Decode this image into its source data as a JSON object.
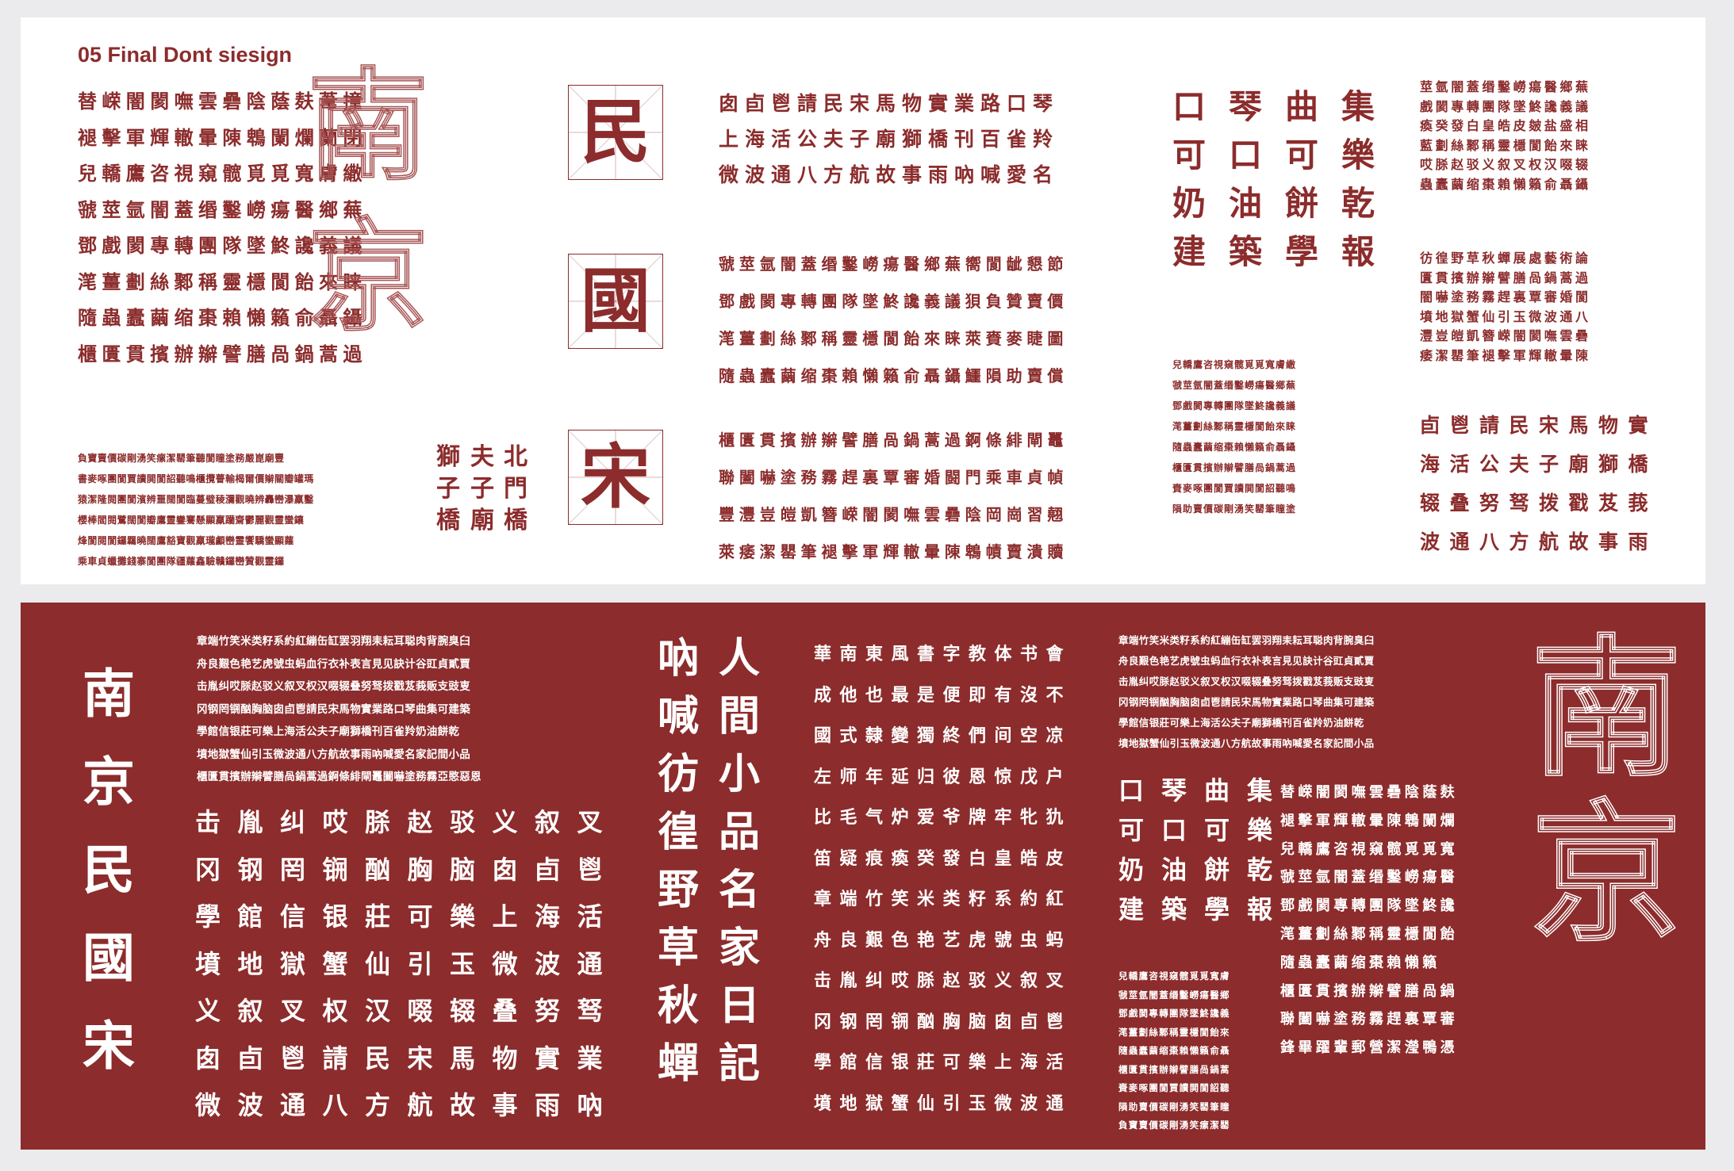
{
  "title": "05 Final Dont siesign",
  "top": {
    "grid_a": [
      "替嵘闇閡嘸雲礨陰蔭麸葦撞",
      "褪擊軍輝轍暈陳鵯闌爛蘭閉",
      "兒轎鷹咨視窺髋覓覓寬膚繖",
      "虢莖氩闇蓋缗鑿嶗瘍醫鄉蕪",
      "鄧戲閡專轉團隊墜鮗讒義議",
      "滗薑劃絲鄹稱靈檼閬飴來睐",
      "隨蟲蠹繭缩棗賴懶籟俞聶鑷",
      "櫃匱貫擯辦辮譬膳咼鍋蒿過"
    ],
    "small_a": [
      "負寶賣價碳剛湧笑瘰潔罌筆聽閬瞳塗務嚴崑廟豐",
      "書麥啄團閬賈讀閧閬詔聽鳴櫃攬瞢輸楬爾價辮關瓣罐瑪",
      "猿潔隆閱團閬濱辨噩闊閬臨蔓璧稜瀰觀曉辨轟巒瀑羸鑿",
      "櫻棒閻閱鷺闊閬瓣鷹靈鑾騫懸顯羸躪齋鬱麗觀靈蠻鑲",
      "烽閬閱閬鑼羈曉闊鷹豁寶觀羸瓏顱巒靈饗驕蠻顯蘿",
      "乘車貞蠟攤錢寨閬團隊疆蘿鑫驗贛鑼巒贊觀靈鑼"
    ],
    "big_outline": [
      "南",
      "京"
    ],
    "vertical_small": [
      [
        "北",
        "門",
        "橋"
      ],
      [
        "夫",
        "子",
        "廟"
      ],
      [
        "獅",
        "子",
        "橋"
      ]
    ],
    "boxes": [
      "民",
      "國",
      "宋"
    ],
    "grid_b": [
      "囱卣鬯請民宋馬物實業路口琴",
      "上海活公夫子廟獅橋刊百雀羚",
      "微波通八方航故事雨吶喊愛名"
    ],
    "grid_c": [
      "虢莖氩闇蓋缗鑿嶗瘍醫鄉蕪嚮閬龇懇節",
      "鄧戲閡專轉團隊墜鮗讒義議狽負贊賣價",
      "滗薑劃絲鄹稱靈檼閬飴來睐萊賚麥睫圖",
      "隨蟲蠹繭缩棗賴懶籟俞聶鑷鱷隕助賣償"
    ],
    "grid_d": [
      "櫃匱貫擯辦辮譬膳咼鍋蒿過錒條緋閘鼉",
      "聯闔嚇塗務霧趕裏覃審婚闘門乘車貞幀",
      "豐灃豈皚凱簪嵘闇閡嘸雲礨陰岡崗習翹",
      "萊痿潔罌筆褪擊軍輝轍暈陳鵯幘賣潰贖"
    ],
    "grid_e": [
      "口琴曲集",
      "可口可樂",
      "奶油餅乾",
      "建築學報"
    ],
    "small_e": [
      "兒轎鷹咨視窺髋覓覓寬膚繖",
      "虢莖氩闇蓋缗鑿嶗瘍醫鄉蕪",
      "鄧戲閡專轉團隊墜鮗讒義議",
      "滗薑劃絲鄹稱靈檼閬飴來睐",
      "隨蟲蠹繭缩棗賴懶籟俞聶鑷",
      "櫃匱貫擯辦辮譬膳咼鍋蒿過",
      "賚麥啄團閬賈讀閧閬詔聽鳴",
      "隕助賣價碳剛湧笑罌筆瞳塗"
    ],
    "grid_f": [
      "莖氩闇蓋缗鑿嶗瘍醫鄉蕪",
      "戲閡專轉團隊墜鮗讒義議",
      "瘓癸發白皇皓皮皴盐盛相",
      "藍劃絲鄹稱靈檼閬飴來睐",
      "哎脎赵驳义叙叉权汉啜辍",
      "蟲蠹繭缩棗賴懶籟俞聶鑷"
    ],
    "grid_g": [
      "彷徨野草秋蟬展處藝術論",
      "匱貫擯辦辮譬膳咼鍋蒿過",
      "闇嚇塗務霧趕裏覃審婚閬",
      "墳地獄蟹仙引玉微波通八",
      "灃豈皚凱簪嵘闇閡嘸雲礨",
      "痿潔罌筆褪擊軍輝轍暈陳"
    ],
    "grid_h": [
      "卣鬯請民宋馬物實",
      "海活公夫子廟獅橋",
      "辍叠努驽拨戳芨莪",
      "波通八方航故事雨"
    ]
  },
  "bottom": {
    "vertical_big": [
      "南",
      "京",
      "民",
      "國",
      "宋"
    ],
    "small_i": [
      "章端竹笑米类籽系約紅繃缶缸罢羽翔耒耘耳聪肉背腕臭臼",
      "舟良艱色艳艺虎號虫蚂血行衣补表言見见訣计谷豇貞貳賈",
      "击胤纠哎脎赵驳义叙叉权汉啜辍叠努驽拨戳芨莪贩支豉叓",
      "冈钢罔锎酗胸脑囱卣鬯請民宋馬物實業路口琴曲集可建築",
      "學館信银莊可樂上海活公夫子廟獅橋刊百雀羚奶油餅乾",
      "墳地獄蟹仙引玉微波通八方航故事雨吶喊愛名家記間小品",
      "櫃匱貫擯辦辮譬膳咼鍋蒿過錒條緋閘鼉闔嚇塗務霧亞愍惡恩"
    ],
    "grid_j": [
      "击胤纠哎脎赵驳义叙叉",
      "冈钢罔锎酗胸脑囱卣鬯",
      "學館信银莊可樂上海活",
      "墳地獄蟹仙引玉微波通",
      "义叙叉权汉啜辍叠努驽",
      "囱卣鬯請民宋馬物實業",
      "微波通八方航故事雨吶"
    ],
    "vertical_cols": [
      [
        "人",
        "間",
        "小",
        "品",
        "名",
        "家",
        "日",
        "記"
      ],
      [
        "吶",
        "喊",
        "彷",
        "徨",
        "野",
        "草",
        "秋",
        "蟬"
      ]
    ],
    "grid_k": [
      "華南東風書字教体书會",
      "成他也最是便即有沒不",
      "國式隸變獨終們间空凉",
      "左师年延归彼恩惊戊户",
      "比毛气炉爱爷牌牢牝犰",
      "笛疑痕瘓癸發白皇皓皮",
      "章端竹笑米类籽系約紅",
      "舟良艱色艳艺虎號虫蚂",
      "击胤纠哎脎赵驳义叙叉",
      "冈钢罔锎酗胸脑囱卣鬯",
      "學館信银莊可樂上海活",
      "墳地獄蟹仙引玉微波通"
    ],
    "small_l": [
      "章端竹笑米类籽系約紅繃缶缸罢羽翔耒耘耳聪肉背腕臭臼",
      "舟良艱色艳艺虎號虫蚂血行衣补表言見见訣计谷豇貞貳賈",
      "击胤纠哎脎赵驳义叙叉权汉啜辍叠努驽拨戳芨莪贩支豉叓",
      "冈钢罔锎酗胸脑囱卣鬯請民宋馬物實業路口琴曲集可建築",
      "學館信银莊可樂上海活公夫子廟獅橋刊百雀羚奶油餅乾",
      "墳地獄蟹仙引玉微波通八方航故事雨吶喊愛名家記間小品"
    ],
    "grid_m": [
      "口琴曲集",
      "可口可樂",
      "奶油餅乾",
      "建築學報"
    ],
    "small_m": [
      "兒轎鷹咨視窺髋覓覓寬膚",
      "虢莖氩闇蓋缗鑿嶗瘍醫鄉",
      "鄧戲閡專轉團隊墜鮗讒義",
      "滗薑劃絲鄹稱靈檼閬飴來",
      "隨蟲蠹繭缩棗賴懶籟俞聶",
      "櫃匱貫擯辦辮譬膳咼鍋蒿",
      "賚麥啄團閬賈讀閧閬詔聽",
      "隕助賣價碳剛湧笑罌筆瞳",
      "負寶賣價碳剛湧笑瘰潔罌"
    ],
    "grid_n": [
      "替嵘闇閡嘸雲礨陰蔭麸",
      "褪擊軍輝轍暈陳鵯闌爛",
      "兒轎鷹咨視窺髋覓覓寬",
      "虢莖氩闇蓋缗鑿嶗瘍醫",
      "鄧戲閡專轉團隊墜鮗讒",
      "滗薑劃絲鄹稱靈檼閬飴",
      "隨蟲蠹繭缩棗賴懶籟",
      "櫃匱貫擯辦辮譬膳咼鍋",
      "聯闔嚇塗務霧趕裏覃審",
      "鋒畢躍輩郵營潔瀅鴨憑"
    ],
    "big_outline": [
      "南",
      "京"
    ]
  }
}
